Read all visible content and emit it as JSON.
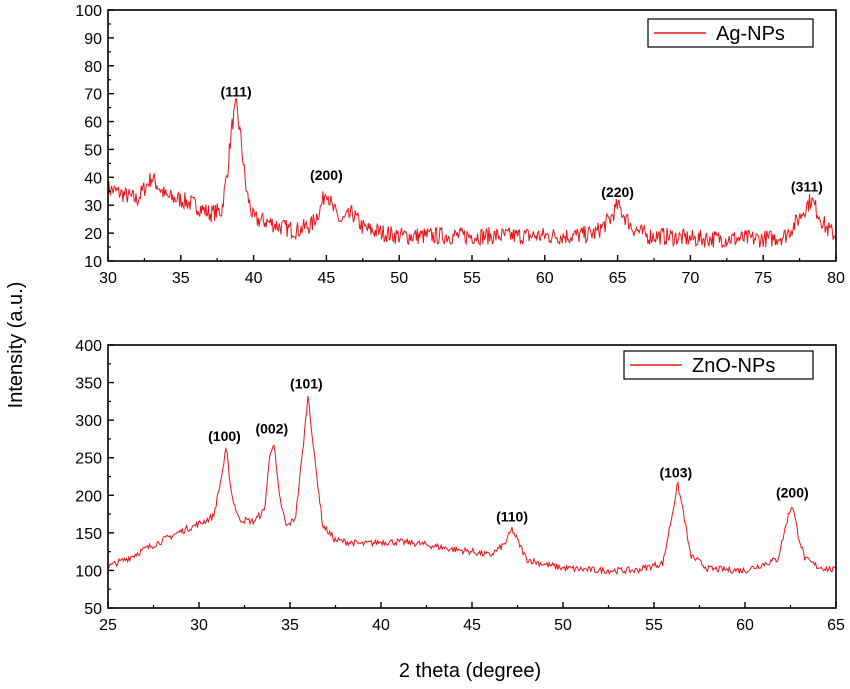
{
  "colors": {
    "series": "#e8151b",
    "axis": "#000000",
    "background": "#ffffff"
  },
  "chart_data": {
    "type": "line",
    "ylabel": "Intensity (a.u.)",
    "xlabel": "2 theta (degree)",
    "panels": [
      {
        "legend": "Ag-NPs",
        "xlim": [
          30,
          80
        ],
        "ylim": [
          10,
          100
        ],
        "xticks": [
          30,
          35,
          40,
          45,
          50,
          55,
          60,
          65,
          70,
          75,
          80
        ],
        "yticks": [
          10,
          20,
          30,
          40,
          50,
          60,
          70,
          80,
          90,
          100
        ],
        "series": {
          "name": "Ag-NPs",
          "noise": 3.2,
          "x": [
            30,
            31,
            32,
            33,
            34,
            35,
            36,
            37,
            37.8,
            38.2,
            38.5,
            38.8,
            39.1,
            39.5,
            40,
            41,
            42,
            43,
            44,
            44.6,
            45,
            45.4,
            46,
            46.8,
            47.5,
            48,
            50,
            52,
            54,
            56,
            58,
            60,
            62,
            63.5,
            64.5,
            65,
            65.5,
            66,
            67,
            68,
            70,
            72,
            74,
            75.5,
            76.5,
            77.3,
            78,
            78.3,
            78.8,
            79.3,
            80
          ],
          "y": [
            36,
            34,
            32,
            40,
            33,
            32,
            30,
            27,
            28,
            42,
            58,
            66,
            55,
            35,
            25,
            24,
            22,
            21,
            23,
            29,
            36,
            29,
            24,
            27,
            22,
            21,
            19,
            19,
            19,
            19,
            19,
            19,
            19,
            20,
            25,
            30,
            26,
            22,
            19,
            19,
            18,
            18,
            18,
            18,
            19,
            24,
            30,
            32,
            27,
            22,
            19
          ]
        },
        "annotations": [
          {
            "text": "(111)",
            "x": 38.8,
            "y": 69
          },
          {
            "text": "(200)",
            "x": 45.0,
            "y": 39
          },
          {
            "text": "(220)",
            "x": 65.0,
            "y": 33
          },
          {
            "text": "(311)",
            "x": 78.0,
            "y": 35
          }
        ]
      },
      {
        "legend": "ZnO-NPs",
        "xlim": [
          25,
          65
        ],
        "ylim": [
          50,
          400
        ],
        "xticks": [
          25,
          30,
          35,
          40,
          45,
          50,
          55,
          60,
          65
        ],
        "yticks": [
          50,
          100,
          150,
          200,
          250,
          300,
          350,
          400
        ],
        "series": {
          "name": "ZnO-NPs",
          "noise": 4.5,
          "x": [
            25,
            26,
            27,
            28,
            29,
            30,
            30.8,
            31.2,
            31.5,
            31.8,
            32.2,
            33,
            33.6,
            33.9,
            34.1,
            34.4,
            34.8,
            35.3,
            35.7,
            36,
            36.3,
            36.8,
            37.5,
            39,
            40,
            41,
            42,
            43,
            44,
            45,
            46,
            46.8,
            47.2,
            47.6,
            48,
            49,
            50,
            52,
            54,
            55.5,
            56,
            56.3,
            56.6,
            57,
            58,
            60,
            61.8,
            62.4,
            62.6,
            62.9,
            63.3,
            64,
            65
          ],
          "y": [
            105,
            115,
            128,
            140,
            152,
            162,
            172,
            220,
            262,
            200,
            168,
            165,
            180,
            255,
            272,
            200,
            158,
            170,
            260,
            335,
            260,
            160,
            140,
            135,
            138,
            138,
            136,
            132,
            128,
            125,
            120,
            135,
            155,
            135,
            115,
            108,
            103,
            100,
            100,
            110,
            175,
            215,
            180,
            120,
            102,
            100,
            115,
            175,
            188,
            150,
            115,
            105,
            100
          ]
        },
        "annotations": [
          {
            "text": "(100)",
            "x": 31.4,
            "y": 272
          },
          {
            "text": "(002)",
            "x": 34.0,
            "y": 282
          },
          {
            "text": "(101)",
            "x": 35.9,
            "y": 342
          },
          {
            "text": "(110)",
            "x": 47.2,
            "y": 165
          },
          {
            "text": "(103)",
            "x": 56.2,
            "y": 224
          },
          {
            "text": "(200)",
            "x": 62.6,
            "y": 197
          }
        ]
      }
    ]
  }
}
